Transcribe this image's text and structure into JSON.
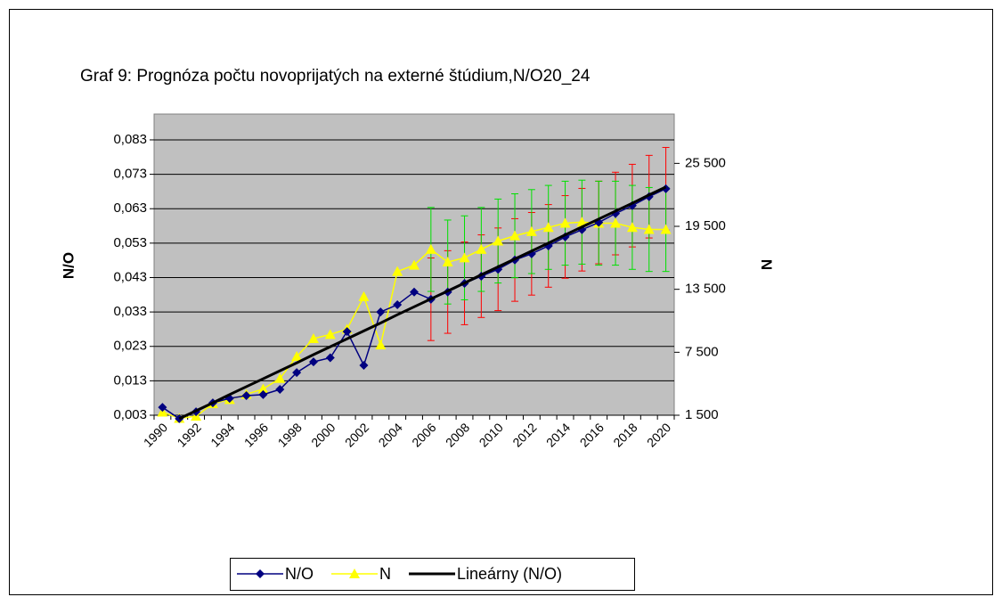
{
  "chart_data": {
    "type": "line",
    "title": "Graf 9: Prognóza počtu novoprijatých na externé štúdium,N/O20_24",
    "y_label": "N/O",
    "y2_label": "N",
    "categories": [
      "1990",
      null,
      "1992",
      null,
      "1994",
      null,
      "1996",
      null,
      "1998",
      null,
      "2000",
      null,
      "2002",
      null,
      "2004",
      null,
      "2006",
      null,
      "2008",
      null,
      "2010",
      null,
      "2012",
      null,
      "2014",
      null,
      "2016",
      null,
      "2018",
      null,
      "2020"
    ],
    "series": [
      {
        "name": "N/O",
        "color": "#000080",
        "marker": "diamond",
        "axis": "y",
        "error_color": "#ff0000",
        "values": [
          0.0053,
          0.002,
          0.004,
          0.0066,
          0.0079,
          0.0087,
          0.009,
          0.0105,
          0.0154,
          0.0185,
          0.0197,
          0.0273,
          0.0175,
          0.033,
          0.0351,
          0.0388,
          0.0367,
          0.0388,
          0.0413,
          0.0434,
          0.0454,
          0.0481,
          0.0499,
          0.0522,
          0.0548,
          0.0569,
          0.059,
          0.0616,
          0.0639,
          0.0665,
          0.0688
        ],
        "errors": [
          null,
          null,
          null,
          null,
          null,
          null,
          null,
          null,
          null,
          null,
          null,
          null,
          null,
          null,
          null,
          null,
          0.012,
          0.012,
          0.012,
          0.012,
          0.012,
          0.012,
          0.012,
          0.012,
          0.012,
          0.012,
          0.012,
          0.012,
          0.012,
          0.012,
          0.012
        ]
      },
      {
        "name": "N",
        "color": "#ffff00",
        "marker": "triangle",
        "axis": "y2",
        "error_color": "#00e000",
        "values": [
          1800,
          1200,
          1400,
          2600,
          3000,
          3500,
          4000,
          5000,
          7100,
          8800,
          9200,
          9700,
          12800,
          8200,
          15200,
          15800,
          17300,
          16100,
          16500,
          17300,
          18100,
          18600,
          19000,
          19400,
          19800,
          19900,
          19800,
          19800,
          19400,
          19200,
          19200
        ],
        "errors": [
          null,
          null,
          null,
          null,
          null,
          null,
          null,
          null,
          null,
          null,
          null,
          null,
          null,
          null,
          null,
          null,
          4000,
          4000,
          4000,
          4000,
          4000,
          4000,
          4000,
          4000,
          4000,
          4000,
          4000,
          4000,
          4000,
          4000,
          4000
        ]
      },
      {
        "name": "Lineárny (N/O)",
        "color": "#000000",
        "marker": null,
        "axis": "y",
        "values": [
          null,
          0.002,
          0.0043,
          0.0066,
          0.009,
          0.0113,
          0.0136,
          0.0159,
          0.0182,
          0.0206,
          0.0229,
          0.0252,
          0.0275,
          0.0298,
          0.0322,
          0.0345,
          0.0368,
          0.0391,
          0.0414,
          0.0438,
          0.0461,
          0.0484,
          0.0507,
          0.053,
          0.0554,
          0.0577,
          0.06,
          0.0623,
          0.0646,
          0.067,
          0.0693
        ]
      }
    ],
    "ylim": [
      0.003,
      0.0905
    ],
    "yticks": [
      {
        "value": 0.003,
        "label": "0,003"
      },
      {
        "value": 0.013,
        "label": "0,013"
      },
      {
        "value": 0.023,
        "label": "0,023"
      },
      {
        "value": 0.033,
        "label": "0,033"
      },
      {
        "value": 0.043,
        "label": "0,043"
      },
      {
        "value": 0.053,
        "label": "0,053"
      },
      {
        "value": 0.063,
        "label": "0,063"
      },
      {
        "value": 0.073,
        "label": "0,073"
      },
      {
        "value": 0.083,
        "label": "0,083"
      }
    ],
    "y2lim": [
      1500,
      30200
    ],
    "y2ticks": [
      {
        "value": 1500,
        "label": "1 500"
      },
      {
        "value": 7500,
        "label": "7 500"
      },
      {
        "value": 13500,
        "label": "13 500"
      },
      {
        "value": 19500,
        "label": "19 500"
      },
      {
        "value": 25500,
        "label": "25 500"
      }
    ],
    "grid": true,
    "legend": "bottom"
  }
}
